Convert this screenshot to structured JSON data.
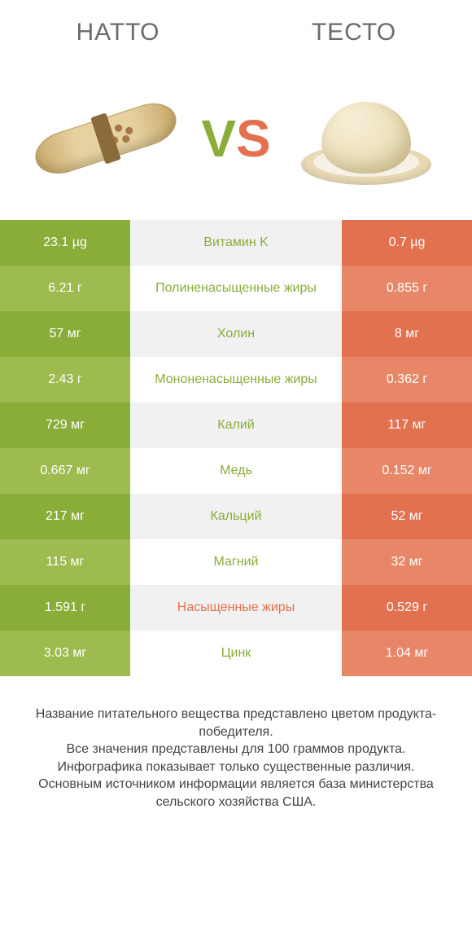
{
  "colors": {
    "left_primary": "#8aad3a",
    "left_alt": "#9dbb4f",
    "right_primary": "#e2714f",
    "right_alt": "#e88767",
    "mid_text_left": "#8aad3a",
    "mid_text_right": "#e2714f",
    "header_text": "#6b6b6b"
  },
  "header": {
    "left": "НАТТО",
    "right": "ТЕСТО"
  },
  "vs": {
    "v": "V",
    "s": "S"
  },
  "rows": [
    {
      "left": "23.1 µg",
      "mid": "Витамин K",
      "right": "0.7 µg",
      "winner": "left"
    },
    {
      "left": "6.21 г",
      "mid": "Полиненасыщенные жиры",
      "right": "0.855 г",
      "winner": "left"
    },
    {
      "left": "57 мг",
      "mid": "Холин",
      "right": "8 мг",
      "winner": "left"
    },
    {
      "left": "2.43 г",
      "mid": "Мононенасыщенные жиры",
      "right": "0.362 г",
      "winner": "left"
    },
    {
      "left": "729 мг",
      "mid": "Калий",
      "right": "117 мг",
      "winner": "left"
    },
    {
      "left": "0.667 мг",
      "mid": "Медь",
      "right": "0.152 мг",
      "winner": "left"
    },
    {
      "left": "217 мг",
      "mid": "Кальций",
      "right": "52 мг",
      "winner": "left"
    },
    {
      "left": "115 мг",
      "mid": "Магний",
      "right": "32 мг",
      "winner": "left"
    },
    {
      "left": "1.591 г",
      "mid": "Насыщенные жиры",
      "right": "0.529 г",
      "winner": "right"
    },
    {
      "left": "3.03 мг",
      "mid": "Цинк",
      "right": "1.04 мг",
      "winner": "left"
    }
  ],
  "footer": {
    "line1": "Название питательного вещества представлено цветом продукта-победителя.",
    "line2": "Все значения представлены для 100 граммов продукта.",
    "line3": "Инфографика показывает только существенные различия.",
    "line4": "Основным источником информации является база министерства сельского хозяйства США."
  }
}
